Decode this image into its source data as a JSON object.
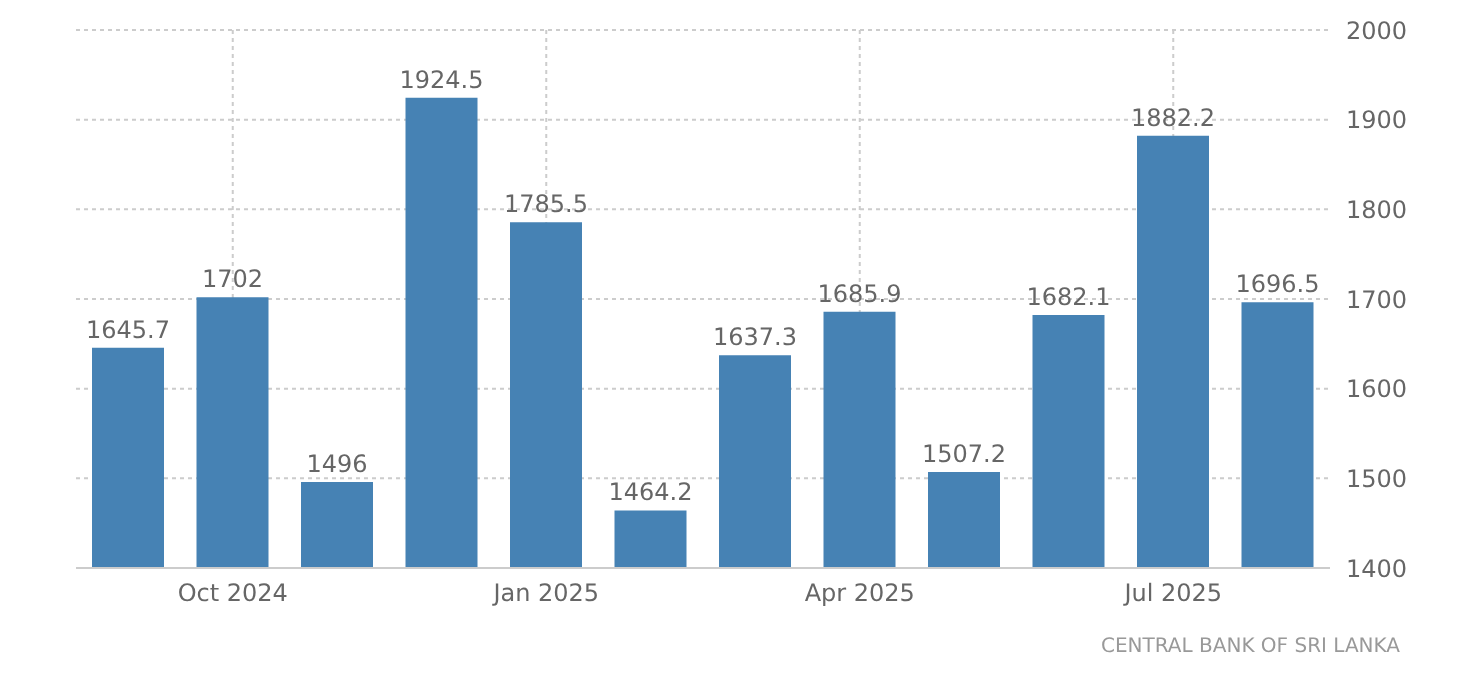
{
  "chart_data": {
    "type": "bar",
    "categories": [
      null,
      "Oct 2024",
      null,
      null,
      "Jan 2025",
      null,
      null,
      "Apr 2025",
      null,
      null,
      "Jul 2025",
      null
    ],
    "values": [
      1645.7,
      1702,
      1496,
      1924.5,
      1785.5,
      1464.2,
      1637.3,
      1685.9,
      1507.2,
      1682.1,
      1882.2,
      1696.5
    ],
    "color": "#4682b4",
    "ylim": [
      1400,
      2000
    ],
    "yticks": [
      1400,
      1500,
      1600,
      1700,
      1800,
      1900,
      2000
    ],
    "grid": true,
    "data_labels": true,
    "annotations": [
      "CENTRAL BANK OF SRI LANKA"
    ]
  }
}
